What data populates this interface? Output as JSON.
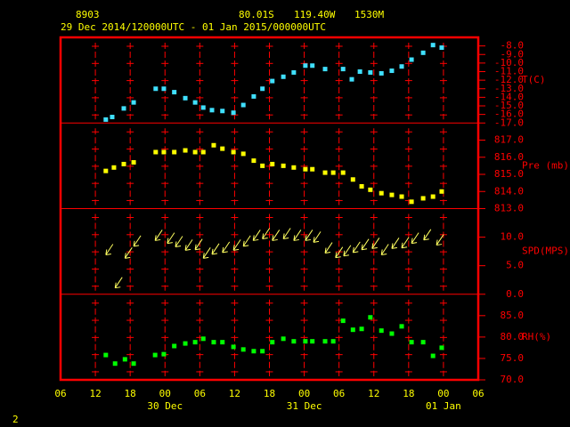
{
  "header": {
    "station": "8903",
    "lat": "80.01S",
    "lon": "119.40W",
    "elev": "1530M",
    "period": "29 Dec 2014/120000UTC - 01 Jan 2015/000000UTC"
  },
  "footer": "2",
  "chart_data": [
    {
      "type": "scatter",
      "ylabel": "T(C)",
      "color": "#40e0ff",
      "xlim": [
        0,
        72
      ],
      "ylim": [
        -17,
        -7
      ],
      "yticks": [
        {
          "value": -8,
          "label": "-8.0"
        },
        {
          "value": -9,
          "label": "-9.0"
        },
        {
          "value": -10,
          "label": "-10.0"
        },
        {
          "value": -11,
          "label": "-11.0"
        },
        {
          "value": -12,
          "label": "-12.0"
        },
        {
          "value": -13,
          "label": "-13.0"
        },
        {
          "value": -14,
          "label": "-14.0"
        },
        {
          "value": -15,
          "label": "-15.0"
        },
        {
          "value": -16,
          "label": "-16.0"
        },
        {
          "value": -17,
          "label": "-17.0"
        }
      ],
      "x": [
        7.8,
        8.9,
        10.9,
        12.6,
        16.4,
        17.8,
        19.6,
        21.5,
        23.2,
        24.6,
        26.1,
        27.9,
        29.8,
        31.5,
        33.3,
        34.8,
        36.5,
        38.4,
        40.2,
        42.2,
        43.4,
        45.6,
        48.7,
        50.2,
        51.6,
        53.4,
        55.3,
        57.1,
        58.8,
        60.5,
        62.5,
        64.2,
        65.7
      ],
      "values": [
        -16.6,
        -16.3,
        -15.3,
        -14.6,
        -13.0,
        -13.0,
        -13.4,
        -14.1,
        -14.6,
        -15.2,
        -15.5,
        -15.6,
        -15.8,
        -14.9,
        -13.9,
        -13.0,
        -12.1,
        -11.6,
        -11.1,
        -10.3,
        -10.3,
        -10.7,
        -10.7,
        -11.9,
        -11.0,
        -11.1,
        -11.2,
        -10.9,
        -10.4,
        -9.6,
        -8.8,
        -7.9,
        -8.2
      ]
    },
    {
      "type": "scatter",
      "ylabel": "Pre (mb)",
      "color": "#ffff00",
      "xlim": [
        0,
        72
      ],
      "ylim": [
        813,
        818
      ],
      "yticks": [
        {
          "value": 817,
          "label": "817.0"
        },
        {
          "value": 816,
          "label": "816.0"
        },
        {
          "value": 815,
          "label": "815.0"
        },
        {
          "value": 814,
          "label": "814.0"
        },
        {
          "value": 813,
          "label": "813.0"
        }
      ],
      "x": [
        7.8,
        9.2,
        10.9,
        12.6,
        16.4,
        17.8,
        19.6,
        21.5,
        23.2,
        24.6,
        26.4,
        27.9,
        29.8,
        31.5,
        33.3,
        34.8,
        36.5,
        38.4,
        40.2,
        42.2,
        43.4,
        45.6,
        47.0,
        48.7,
        50.4,
        51.9,
        53.4,
        55.3,
        57.1,
        58.8,
        60.5,
        62.5,
        64.2,
        65.7
      ],
      "values": [
        815.2,
        815.4,
        815.6,
        815.7,
        816.3,
        816.3,
        816.3,
        816.4,
        816.3,
        816.3,
        816.7,
        816.5,
        816.3,
        816.2,
        815.8,
        815.5,
        815.6,
        815.5,
        815.4,
        815.3,
        815.3,
        815.1,
        815.1,
        815.1,
        814.7,
        814.3,
        814.1,
        813.9,
        813.8,
        813.7,
        813.4,
        813.6,
        813.7,
        814.0
      ]
    },
    {
      "type": "wind",
      "ylabel": "SPD(MPS)",
      "color": "#ffff60",
      "xlim": [
        0,
        72
      ],
      "ylim": [
        0,
        15
      ],
      "yticks": [
        {
          "value": 10,
          "label": "10.0"
        },
        {
          "value": 5,
          "label": "5.0"
        },
        {
          "value": 0,
          "label": "0.0"
        }
      ],
      "x": [
        7.8,
        9.4,
        11.1,
        12.6,
        16.3,
        18.4,
        19.8,
        21.5,
        23.2,
        24.6,
        26.1,
        27.9,
        29.8,
        31.5,
        33.2,
        34.8,
        36.5,
        38.4,
        40.2,
        42.2,
        43.6,
        45.6,
        47.4,
        48.8,
        50.4,
        51.9,
        53.7,
        55.3,
        57.1,
        58.8,
        60.5,
        62.6,
        64.8
      ],
      "values": [
        6.9,
        1.1,
        6.3,
        8.4,
        9.4,
        8.9,
        8.3,
        7.7,
        7.8,
        6.3,
        7.0,
        7.3,
        7.7,
        8.4,
        9.4,
        9.7,
        9.4,
        9.7,
        9.4,
        9.4,
        9.1,
        7.2,
        6.4,
        6.7,
        7.3,
        7.8,
        8.0,
        6.9,
        8.0,
        8.1,
        8.9,
        9.5,
        8.6
      ]
    },
    {
      "type": "scatter",
      "ylabel": "RH(%)",
      "color": "#00ff00",
      "xlim": [
        0,
        72
      ],
      "ylim": [
        70,
        90
      ],
      "yticks": [
        {
          "value": 85,
          "label": "85.0"
        },
        {
          "value": 80,
          "label": "80.0"
        },
        {
          "value": 75,
          "label": "75.0"
        },
        {
          "value": 70,
          "label": "70.0"
        }
      ],
      "x": [
        7.8,
        9.4,
        11.1,
        12.6,
        16.3,
        17.8,
        19.6,
        21.5,
        23.2,
        24.6,
        26.4,
        27.9,
        29.8,
        31.5,
        33.3,
        34.8,
        36.5,
        38.4,
        40.2,
        42.2,
        43.4,
        45.6,
        47.0,
        48.7,
        50.4,
        51.9,
        53.4,
        55.3,
        57.1,
        58.8,
        60.5,
        62.5,
        64.2,
        65.7
      ],
      "values": [
        75.8,
        73.8,
        74.8,
        73.8,
        75.8,
        76.0,
        77.9,
        78.5,
        78.8,
        79.6,
        78.8,
        78.8,
        77.7,
        77.1,
        76.7,
        76.7,
        78.8,
        79.6,
        79.0,
        79.0,
        79.0,
        79.0,
        79.0,
        83.8,
        81.7,
        81.9,
        84.6,
        81.5,
        80.8,
        82.5,
        78.8,
        78.8,
        75.6,
        77.5
      ],
      "xticks": [
        {
          "value": 0,
          "label": "06"
        },
        {
          "value": 6,
          "label": "12"
        },
        {
          "value": 12,
          "label": "18"
        },
        {
          "value": 18,
          "label": "00"
        },
        {
          "value": 24,
          "label": "06"
        },
        {
          "value": 30,
          "label": "12"
        },
        {
          "value": 36,
          "label": "18"
        },
        {
          "value": 42,
          "label": "00"
        },
        {
          "value": 48,
          "label": "06"
        },
        {
          "value": 54,
          "label": "12"
        },
        {
          "value": 60,
          "label": "18"
        },
        {
          "value": 66,
          "label": "00"
        },
        {
          "value": 72,
          "label": "06"
        }
      ],
      "date_labels": [
        {
          "value": 18,
          "label": "30 Dec"
        },
        {
          "value": 42,
          "label": "31 Dec"
        },
        {
          "value": 66,
          "label": "01 Jan"
        }
      ]
    }
  ]
}
